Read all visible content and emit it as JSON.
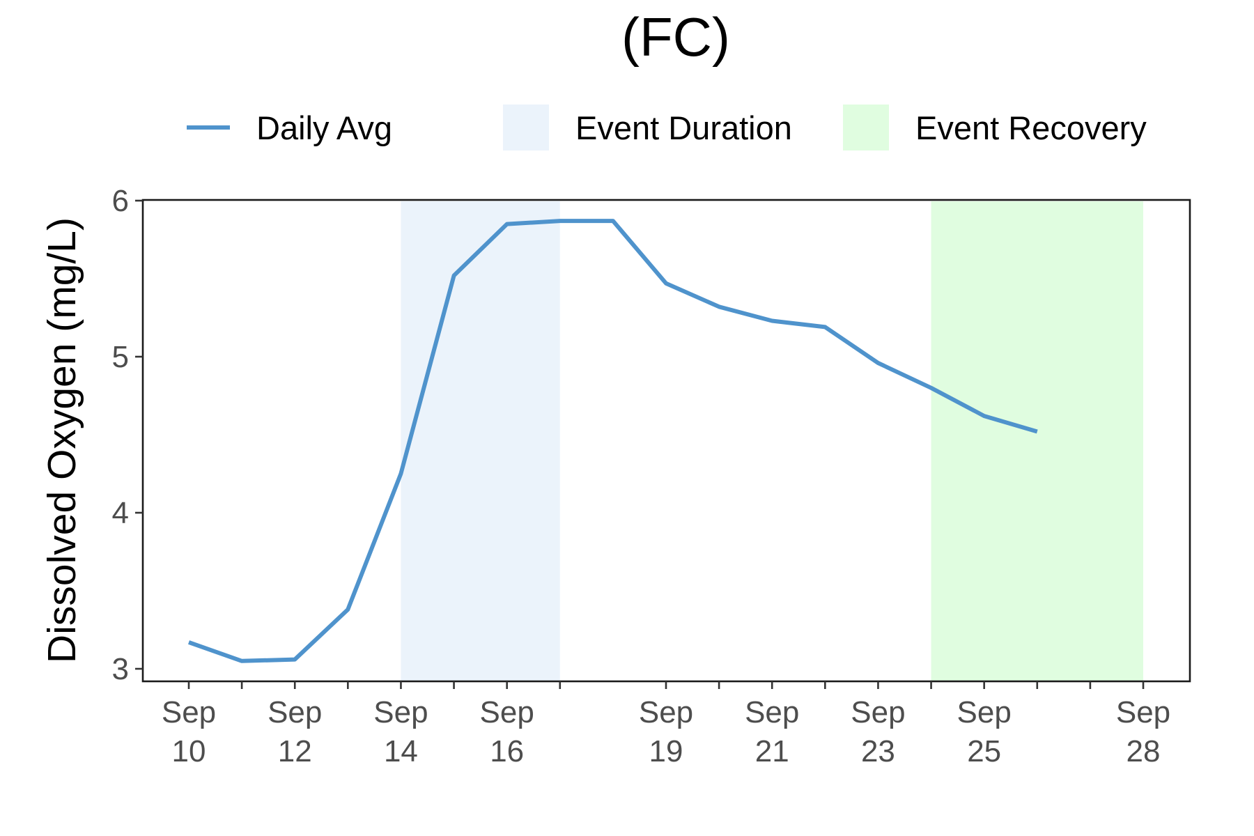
{
  "chart_data": {
    "type": "line",
    "title": "(FC)",
    "xlabel": "",
    "ylabel": "Dissolved Oxygen (mg/L)",
    "xlim": [
      "2023-09-10",
      "2023-09-28"
    ],
    "ylim": [
      3,
      6
    ],
    "y_ticks": [
      3,
      4,
      5,
      6
    ],
    "x_ticks": [
      {
        "date": "2023-09-10",
        "label": [
          "Sep",
          "10"
        ]
      },
      {
        "date": "2023-09-12",
        "label": [
          "Sep",
          "12"
        ]
      },
      {
        "date": "2023-09-14",
        "label": [
          "Sep",
          "14"
        ]
      },
      {
        "date": "2023-09-16",
        "label": [
          "Sep",
          "16"
        ]
      },
      {
        "date": "2023-09-19",
        "label": [
          "Sep",
          "19"
        ]
      },
      {
        "date": "2023-09-21",
        "label": [
          "Sep",
          "21"
        ]
      },
      {
        "date": "2023-09-23",
        "label": [
          "Sep",
          "23"
        ]
      },
      {
        "date": "2023-09-25",
        "label": [
          "Sep",
          "25"
        ]
      },
      {
        "date": "2023-09-28",
        "label": [
          "Sep",
          "28"
        ]
      }
    ],
    "minor_tick_dates": [
      "2023-09-11",
      "2023-09-13",
      "2023-09-15",
      "2023-09-17",
      "2023-09-20",
      "2023-09-22",
      "2023-09-24",
      "2023-09-26",
      "2023-09-27"
    ],
    "series": [
      {
        "name": "Daily Avg",
        "color": "#4f93cc",
        "x": [
          "2023-09-10",
          "2023-09-11",
          "2023-09-12",
          "2023-09-13",
          "2023-09-14",
          "2023-09-15",
          "2023-09-16",
          "2023-09-17",
          "2023-09-18",
          "2023-09-19",
          "2023-09-20",
          "2023-09-21",
          "2023-09-22",
          "2023-09-23",
          "2023-09-24",
          "2023-09-25",
          "2023-09-26"
        ],
        "values": [
          3.17,
          3.05,
          3.06,
          3.38,
          4.25,
          5.52,
          5.85,
          5.87,
          5.87,
          5.47,
          5.32,
          5.23,
          5.19,
          4.96,
          4.8,
          4.62,
          4.52
        ]
      }
    ],
    "shaded_regions": [
      {
        "name": "Event Duration",
        "color": "#ebf3fb",
        "start": "2023-09-14",
        "end": "2023-09-17"
      },
      {
        "name": "Event Recovery",
        "color": "#e0fde0",
        "start": "2023-09-24",
        "end": "2023-09-28"
      }
    ],
    "legend": {
      "position": "top",
      "entries": [
        {
          "label": "Daily Avg",
          "kind": "line",
          "color": "#4f93cc"
        },
        {
          "label": "Event Duration",
          "kind": "fill",
          "color": "#ebf3fb"
        },
        {
          "label": "Event Recovery",
          "kind": "fill",
          "color": "#e0fde0"
        }
      ]
    },
    "grid": false
  }
}
